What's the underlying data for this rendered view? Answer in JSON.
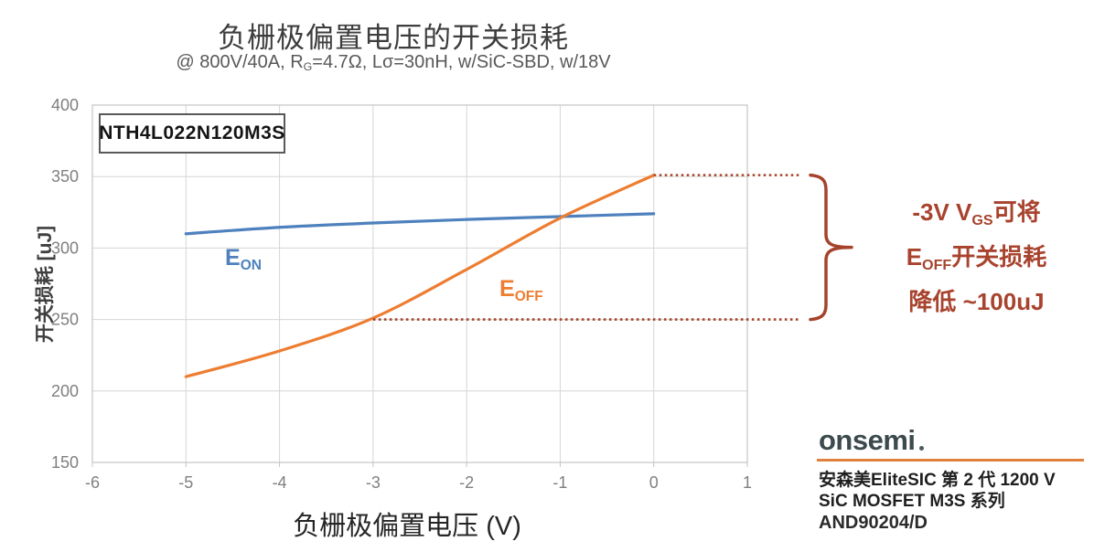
{
  "header": {
    "title": "负栅极偏置电压的开关损耗",
    "subtitle_pre": "@ 800V/40A, R",
    "subtitle_sub": "G",
    "subtitle_post": "=4.7Ω, Lσ=30nH, w/SiC-SBD, w/18V"
  },
  "chart_data": {
    "type": "line",
    "title": "负栅极偏置电压的开关损耗",
    "xlabel": "负栅极偏置电压 (V)",
    "ylabel": "开关损耗 [uJ]",
    "xlim": [
      -6,
      1
    ],
    "ylim": [
      150,
      400
    ],
    "x_ticks": [
      "-6",
      "-5",
      "-4",
      "-3",
      "-2",
      "-1",
      "0",
      "1"
    ],
    "x_tick_values": [
      -6,
      -5,
      -4,
      -3,
      -2,
      -1,
      0,
      1
    ],
    "y_ticks": [
      "150",
      "200",
      "250",
      "300",
      "350",
      "400"
    ],
    "y_tick_values": [
      150,
      200,
      250,
      300,
      350,
      400
    ],
    "grid": true,
    "legend_position": "inline-labels",
    "device_label": "NTH4L022N120M3S",
    "series": [
      {
        "name": "E_ON",
        "label_main": "E",
        "label_sub": "ON",
        "color": "#4E81BD",
        "x": [
          -5,
          -4,
          -3,
          -2,
          -1,
          0
        ],
        "y": [
          310,
          314.5,
          317.5,
          320,
          322,
          324
        ]
      },
      {
        "name": "E_OFF",
        "label_main": "E",
        "label_sub": "OFF",
        "color": "#ED7D31",
        "x": [
          -5,
          -4,
          -3,
          -2,
          -1,
          0
        ],
        "y": [
          210,
          228,
          251,
          285,
          321,
          351
        ]
      }
    ],
    "dotted_guides": [
      {
        "y": 351,
        "x_start": 0
      },
      {
        "y": 250,
        "x_start": -3
      }
    ],
    "guide_color": "#A5432B",
    "grid_color": "#D6D6D6",
    "border_color": "#C4C4C4",
    "tick_label_color": "#7F7F7F"
  },
  "annotation": {
    "color": "#A8432E",
    "line1_pre": "-3V V",
    "line1_sub": "GS",
    "line1_post": "可将",
    "line2_pre": "E",
    "line2_sub": "OFF",
    "line2_post": "开关损耗",
    "line3": "降低 ~100uJ"
  },
  "footer": {
    "logo_text": "onsemi",
    "logo_color": "#3C4A4E",
    "underline_color": "#E0823E",
    "line1": "安森美EliteSIC 第 2 代 1200 V",
    "line2": "SiC MOSFET M3S 系列",
    "doc_number": "AND90204/D"
  }
}
